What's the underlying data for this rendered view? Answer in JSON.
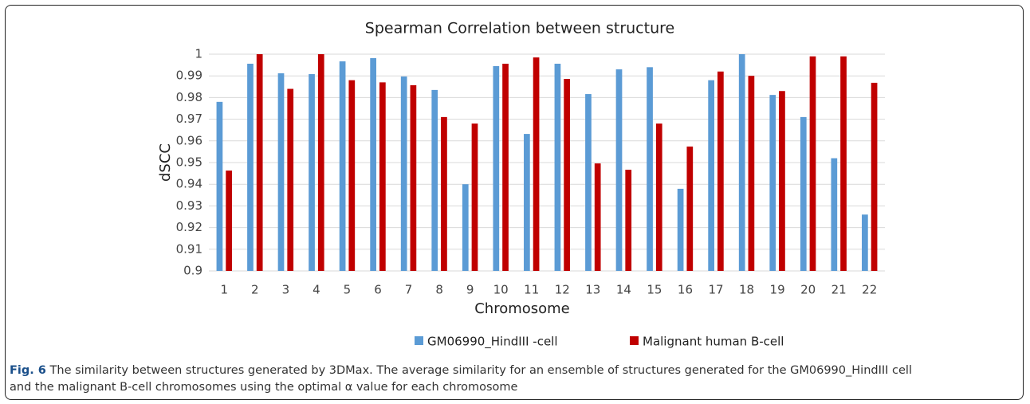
{
  "chart_data": {
    "type": "bar",
    "title": "Spearman Correlation between structure",
    "x_label": "Chromosome",
    "y_label": "dSCC",
    "categories": [
      "1",
      "2",
      "3",
      "4",
      "5",
      "6",
      "7",
      "8",
      "9",
      "10",
      "11",
      "12",
      "13",
      "14",
      "15",
      "16",
      "17",
      "18",
      "19",
      "20",
      "21",
      "22"
    ],
    "series": [
      {
        "name": "GM06990_HindIII -cell",
        "color": "#5b9bd5",
        "values": [
          0.978,
          0.9956,
          0.9912,
          0.9908,
          0.9967,
          0.9982,
          0.9897,
          0.9835,
          0.94,
          0.9945,
          0.9632,
          0.9956,
          0.9816,
          0.993,
          0.994,
          0.9379,
          0.988,
          1.0,
          0.9812,
          0.971,
          0.952,
          0.926
        ]
      },
      {
        "name": "Malignant human B-cell",
        "color": "#c00000",
        "values": [
          0.9463,
          1.0,
          0.984,
          1.0,
          0.988,
          0.987,
          0.9857,
          0.971,
          0.968,
          0.9956,
          0.9985,
          0.9886,
          0.9496,
          0.9467,
          0.968,
          0.9574,
          0.992,
          0.99,
          0.983,
          0.999,
          0.999,
          0.9868
        ]
      }
    ],
    "ylim": [
      0.9,
      1
    ],
    "yticks": [
      0.9,
      0.91,
      0.92,
      0.93,
      0.94,
      0.95,
      0.96,
      0.97,
      0.98,
      0.99,
      1
    ],
    "grid": true,
    "legend": "bottom"
  },
  "caption": {
    "label": "Fig. 6",
    "text": "The similarity between structures generated by 3DMax. The average similarity for an ensemble of structures generated for the GM06990_HindIII cell and the malignant B-cell chromosomes using the optimal α value for each chromosome"
  }
}
